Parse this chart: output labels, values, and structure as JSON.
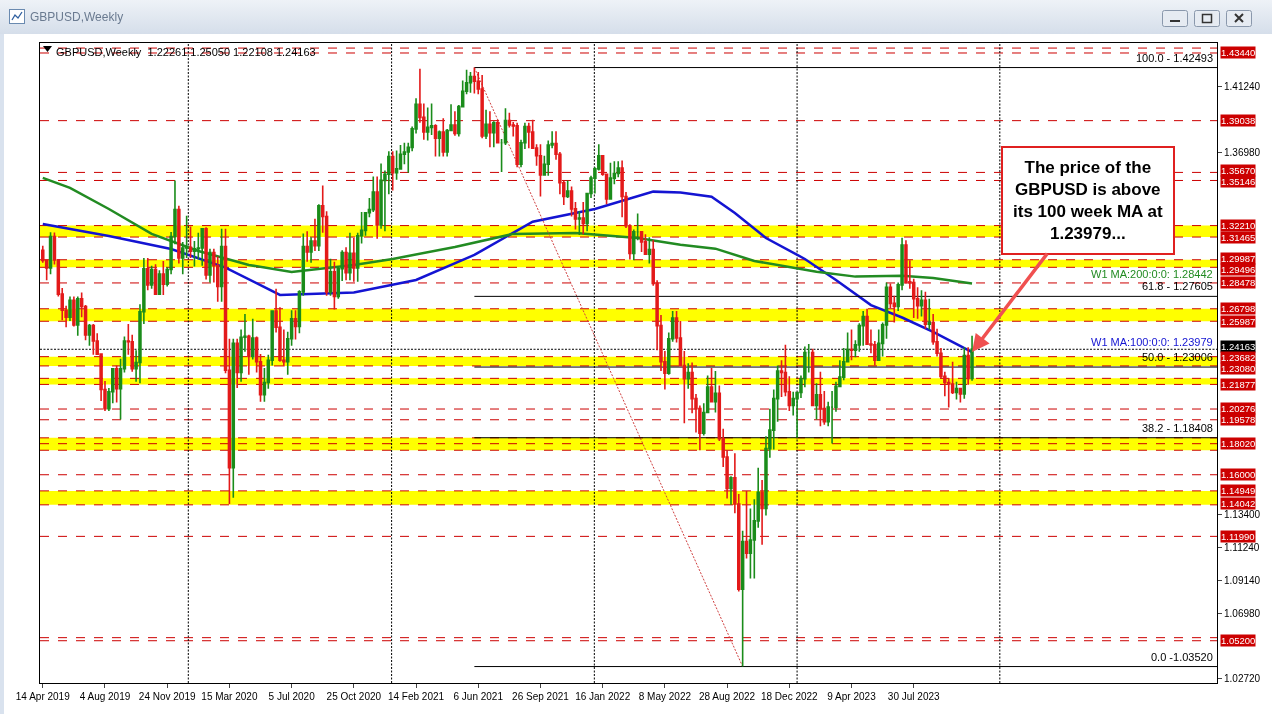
{
  "chart_data": {
    "type": "candlestick",
    "title": "GBPUSD,Weekly",
    "subtitle": "GBPUSD,Weekly  1.22261 1.25050 1.22108 1.24163",
    "colors": [
      "#e31a1a",
      "#e31a1a",
      "#1a8c1a",
      "#e31a1a",
      "#e31a1a",
      "#e31a1a",
      "#e31a1a",
      "#1a8c1a",
      "#e31a1a",
      "#1a8c1a",
      "#e31a1a",
      "#e31a1a",
      "#1a8c1a",
      "#e31a1a",
      "#e31a1a",
      "#e31a1a",
      "#e31a1a",
      "#1a8c1a",
      "#1a8c1a",
      "#e31a1a",
      "#1a8c1a",
      "#1a8c1a",
      "#e31a1a",
      "#e31a1a",
      "#1a8c1a",
      "#1a8c1a",
      "#1a8c1a",
      "#e31a1a",
      "#1a8c1a",
      "#e31a1a",
      "#1a8c1a",
      "#e31a1a",
      "#1a8c1a",
      "#1a8c1a",
      "#1a8c1a",
      "#e31a1a",
      "#1a8c1a",
      "#1a8c1a",
      "#e31a1a",
      "#1a8c1a",
      "#1a8c1a",
      "#1a8c1a",
      "#e31a1a",
      "#1a8c1a",
      "#e31a1a",
      "#e31a1a",
      "#1a8c1a",
      "#e31a1a",
      "#e31a1a",
      "#1a8c1a",
      "#e31a1a",
      "#1a8c1a",
      "#1a8c1a",
      "#e31a1a",
      "#1a8c1a",
      "#e31a1a",
      "#e31a1a",
      "#1a8c1a",
      "#1a8c1a",
      "#1a8c1a",
      "#e31a1a",
      "#e31a1a",
      "#e31a1a",
      "#1a8c1a",
      "#1a8c1a",
      "#e31a1a",
      "#1a8c1a",
      "#1a8c1a",
      "#e31a1a",
      "#1a8c1a",
      "#e31a1a",
      "#1a8c1a",
      "#e31a1a",
      "#e31a1a",
      "#1a8c1a",
      "#e31a1a",
      "#1a8c1a",
      "#1a8c1a",
      "#e31a1a",
      "#1a8c1a",
      "#e31a1a",
      "#1a8c1a",
      "#1a8c1a",
      "#1a8c1a",
      "#1a8c1a",
      "#1a8c1a",
      "#e31a1a",
      "#1a8c1a",
      "#1a8c1a",
      "#1a8c1a",
      "#e31a1a",
      "#1a8c1a",
      "#1a8c1a",
      "#1a8c1a",
      "#1a8c1a",
      "#1a8c1a",
      "#1a8c1a",
      "#e31a1a",
      "#e31a1a",
      "#1a8c1a",
      "#1a8c1a",
      "#e31a1a",
      "#1a8c1a",
      "#e31a1a",
      "#1a8c1a",
      "#1a8c1a",
      "#e31a1a",
      "#1a8c1a",
      "#1a8c1a",
      "#1a8c1a",
      "#1a8c1a",
      "#e31a1a",
      "#e31a1a",
      "#e31a1a",
      "#1a8c1a",
      "#e31a1a",
      "#1a8c1a",
      "#e31a1a",
      "#1a8c1a",
      "#1a8c1a",
      "#e31a1a",
      "#e31a1a",
      "#e31a1a",
      "#1a8c1a",
      "#1a8c1a",
      "#e31a1a",
      "#e31a1a",
      "#e31a1a",
      "#e31a1a",
      "#1a8c1a",
      "#1a8c1a",
      "#1a8c1a",
      "#e31a1a",
      "#e31a1a",
      "#e31a1a",
      "#1a8c1a",
      "#e31a1a",
      "#e31a1a",
      "#1a8c1a",
      "#e31a1a",
      "#1a8c1a",
      "#1a8c1a",
      "#1a8c1a",
      "#1a8c1a",
      "#e31a1a",
      "#e31a1a",
      "#1a8c1a",
      "#1a8c1a",
      "#1a8c1a",
      "#e31a1a",
      "#e31a1a",
      "#e31a1a",
      "#1a8c1a",
      "#1a8c1a",
      "#e31a1a",
      "#e31a1a",
      "#1a8c1a",
      "#e31a1a",
      "#e31a1a",
      "#e31a1a",
      "#e31a1a",
      "#1a8c1a",
      "#1a8c1a",
      "#e31a1a",
      "#e31a1a",
      "#e31a1a",
      "#1a8c1a",
      "#e31a1a",
      "#e31a1a",
      "#e31a1a",
      "#1a8c1a",
      "#1a8c1a",
      "#e31a1a",
      "#1a8c1a",
      "#e31a1a",
      "#e31a1a",
      "#e31a1a",
      "#1a8c1a",
      "#e31a1a",
      "#e31a1a",
      "#1a8c1a",
      "#e31a1a",
      "#1a8c1a",
      "#1a8c1a",
      "#1a8c1a",
      "#e31a1a",
      "#1a8c1a",
      "#1a8c1a",
      "#1a8c1a",
      "#1a8c1a",
      "#e31a1a",
      "#e31a1a",
      "#e31a1a",
      "#1a8c1a",
      "#1a8c1a",
      "#1a8c1a",
      "#1a8c1a",
      "#1a8c1a",
      "#e31a1a",
      "#1a8c1a",
      "#e31a1a",
      "#e31a1a",
      "#1a8c1a",
      "#1a8c1a",
      "#1a8c1a",
      "#1a8c1a",
      "#1a8c1a",
      "#1a8c1a",
      "#e31a1a",
      "#1a8c1a",
      "#1a8c1a",
      "#1a8c1a",
      "#e31a1a",
      "#e31a1a",
      "#e31a1a",
      "#1a8c1a",
      "#1a8c1a",
      "#1a8c1a",
      "#e31a1a",
      "#e31a1a",
      "#1a8c1a",
      "#1a8c1a",
      "#e31a1a",
      "#e31a1a",
      "#e31a1a",
      "#e31a1a",
      "#1a8c1a",
      "#e31a1a",
      "#1a8c1a",
      "#e31a1a",
      "#e31a1a",
      "#e31a1a",
      "#e31a1a",
      "#e31a1a",
      "#e31a1a",
      "#1a8c1a",
      "#e31a1a",
      "#1a8c1a",
      "#e31a1a",
      "#1a8c1a"
    ],
    "x": [
      "2019-04-14",
      "2019-04-21",
      "2019-04-28",
      "2019-05-05",
      "2019-05-12",
      "2019-05-19",
      "2019-05-26",
      "2019-06-02",
      "2019-06-09",
      "2019-06-16",
      "2019-06-23",
      "2019-06-30",
      "2019-07-07",
      "2019-07-14",
      "2019-07-21",
      "2019-07-28",
      "2019-08-04",
      "2019-08-11",
      "2019-08-18",
      "2019-08-25",
      "2019-09-01",
      "2019-09-08",
      "2019-09-15",
      "2019-09-22",
      "2019-09-29",
      "2019-10-06",
      "2019-10-13",
      "2019-10-20",
      "2019-10-27",
      "2019-11-03",
      "2019-11-10",
      "2019-11-17",
      "2019-11-24",
      "2019-12-01",
      "2019-12-08",
      "2019-12-15",
      "2019-12-22",
      "2019-12-29",
      "2020-01-05",
      "2020-01-12",
      "2020-01-19",
      "2020-01-26",
      "2020-02-02",
      "2020-02-09",
      "2020-02-16",
      "2020-02-23",
      "2020-03-01",
      "2020-03-08",
      "2020-03-15",
      "2020-03-22",
      "2020-03-29",
      "2020-04-05",
      "2020-04-12",
      "2020-04-19",
      "2020-04-26",
      "2020-05-03",
      "2020-05-10",
      "2020-05-17",
      "2020-05-24",
      "2020-05-31",
      "2020-06-07",
      "2020-06-14",
      "2020-06-21",
      "2020-06-28",
      "2020-07-05",
      "2020-07-12",
      "2020-07-19",
      "2020-07-26",
      "2020-08-02",
      "2020-08-09",
      "2020-08-16",
      "2020-08-23",
      "2020-08-30",
      "2020-09-06",
      "2020-09-13",
      "2020-09-20",
      "2020-09-27",
      "2020-10-04",
      "2020-10-11",
      "2020-10-18",
      "2020-10-25",
      "2020-11-01",
      "2020-11-08",
      "2020-11-15",
      "2020-11-22",
      "2020-11-29",
      "2020-12-06",
      "2020-12-13",
      "2020-12-20",
      "2020-12-27",
      "2021-01-03",
      "2021-01-10",
      "2021-01-17",
      "2021-01-24",
      "2021-01-31",
      "2021-02-07",
      "2021-02-14",
      "2021-02-21",
      "2021-02-28",
      "2021-03-07",
      "2021-03-14",
      "2021-03-21",
      "2021-03-28",
      "2021-04-04",
      "2021-04-11",
      "2021-04-18",
      "2021-04-25",
      "2021-05-02",
      "2021-05-09",
      "2021-05-16",
      "2021-05-23",
      "2021-05-30",
      "2021-06-06",
      "2021-06-13",
      "2021-06-20",
      "2021-06-27",
      "2021-07-04",
      "2021-07-11",
      "2021-07-18",
      "2021-07-25",
      "2021-08-01",
      "2021-08-08",
      "2021-08-15",
      "2021-08-22",
      "2021-08-29",
      "2021-09-05",
      "2021-09-12",
      "2021-09-19",
      "2021-09-26",
      "2021-10-03",
      "2021-10-10",
      "2021-10-17",
      "2021-10-24",
      "2021-10-31",
      "2021-11-07",
      "2021-11-14",
      "2021-11-21",
      "2021-11-28",
      "2021-12-05",
      "2021-12-12",
      "2021-12-19",
      "2021-12-26",
      "2022-01-02",
      "2022-01-09",
      "2022-01-16",
      "2022-01-23",
      "2022-01-30",
      "2022-02-06",
      "2022-02-13",
      "2022-02-20",
      "2022-02-27",
      "2022-03-06",
      "2022-03-13",
      "2022-03-20",
      "2022-03-27",
      "2022-04-03",
      "2022-04-10",
      "2022-04-17",
      "2022-04-24",
      "2022-05-01",
      "2022-05-08",
      "2022-05-15",
      "2022-05-22",
      "2022-05-29",
      "2022-06-05",
      "2022-06-12",
      "2022-06-19",
      "2022-06-26",
      "2022-07-03",
      "2022-07-10",
      "2022-07-17",
      "2022-07-24",
      "2022-07-31",
      "2022-08-07",
      "2022-08-14",
      "2022-08-21",
      "2022-08-28",
      "2022-09-04",
      "2022-09-11",
      "2022-09-18",
      "2022-09-25",
      "2022-10-02",
      "2022-10-09",
      "2022-10-16",
      "2022-10-23",
      "2022-10-30",
      "2022-11-06",
      "2022-11-13",
      "2022-11-20",
      "2022-11-27",
      "2022-12-04",
      "2022-12-11",
      "2022-12-18",
      "2022-12-25",
      "2023-01-01",
      "2023-01-08",
      "2023-01-15",
      "2023-01-22",
      "2023-01-29",
      "2023-02-05",
      "2023-02-12",
      "2023-02-19",
      "2023-02-26",
      "2023-03-05",
      "2023-03-12",
      "2023-03-19",
      "2023-03-26",
      "2023-04-02",
      "2023-04-09",
      "2023-04-16",
      "2023-04-23",
      "2023-04-30",
      "2023-05-07",
      "2023-05-14",
      "2023-05-21",
      "2023-05-28",
      "2023-06-04",
      "2023-06-11",
      "2023-06-18",
      "2023-06-25",
      "2023-07-02",
      "2023-07-09",
      "2023-07-16",
      "2023-07-23",
      "2023-07-30",
      "2023-08-06",
      "2023-08-13",
      "2023-08-20",
      "2023-08-27",
      "2023-09-03",
      "2023-09-10",
      "2023-09-17",
      "2023-09-24",
      "2023-10-01",
      "2023-10-08",
      "2023-10-15",
      "2023-10-22",
      "2023-10-29",
      "2023-11-05",
      "2023-11-12"
    ],
    "ohlc": [
      [
        1.306,
        1.309,
        1.298,
        1.2995
      ],
      [
        1.2995,
        1.3,
        1.2866,
        1.2945
      ],
      [
        1.2945,
        1.3177,
        1.2905,
        1.315
      ],
      [
        1.315,
        1.3176,
        1.2968,
        1.2998
      ],
      [
        1.2998,
        1.3,
        1.276,
        1.2775
      ],
      [
        1.2775,
        1.2815,
        1.2605,
        1.267
      ],
      [
        1.267,
        1.27,
        1.256,
        1.2625
      ],
      [
        1.2625,
        1.276,
        1.26,
        1.2735
      ],
      [
        1.2735,
        1.276,
        1.2565,
        1.2575
      ],
      [
        1.2575,
        1.276,
        1.2505,
        1.2745
      ],
      [
        1.2745,
        1.2785,
        1.2625,
        1.2695
      ],
      [
        1.2695,
        1.2705,
        1.2475,
        1.251
      ],
      [
        1.251,
        1.258,
        1.244,
        1.257
      ],
      [
        1.257,
        1.258,
        1.238,
        1.247
      ],
      [
        1.247,
        1.252,
        1.238,
        1.2385
      ],
      [
        1.2385,
        1.239,
        1.208,
        1.2155
      ],
      [
        1.2155,
        1.221,
        1.2015,
        1.203
      ],
      [
        1.203,
        1.2165,
        1.2015,
        1.214
      ],
      [
        1.214,
        1.229,
        1.2065,
        1.229
      ],
      [
        1.229,
        1.231,
        1.207,
        1.216
      ],
      [
        1.216,
        1.2355,
        1.1959,
        1.229
      ],
      [
        1.229,
        1.25,
        1.2265,
        1.247
      ],
      [
        1.247,
        1.258,
        1.238,
        1.2465
      ],
      [
        1.2465,
        1.251,
        1.227,
        1.229
      ],
      [
        1.229,
        1.241,
        1.2205,
        1.233
      ],
      [
        1.233,
        1.271,
        1.2195,
        1.266
      ],
      [
        1.266,
        1.301,
        1.258,
        1.294
      ],
      [
        1.294,
        1.301,
        1.28,
        1.2835
      ],
      [
        1.2835,
        1.296,
        1.281,
        1.2935
      ],
      [
        1.2935,
        1.297,
        1.277,
        1.2775
      ],
      [
        1.2775,
        1.293,
        1.277,
        1.2905
      ],
      [
        1.2905,
        1.299,
        1.277,
        1.284
      ],
      [
        1.284,
        1.295,
        1.2825,
        1.2935
      ],
      [
        1.2935,
        1.318,
        1.2905,
        1.315
      ],
      [
        1.315,
        1.3514,
        1.31,
        1.3325
      ],
      [
        1.3325,
        1.335,
        1.2975,
        1.301
      ],
      [
        1.301,
        1.3115,
        1.2905,
        1.3075
      ],
      [
        1.3075,
        1.3285,
        1.301,
        1.308
      ],
      [
        1.308,
        1.3215,
        1.301,
        1.3055
      ],
      [
        1.3055,
        1.312,
        1.2955,
        1.307
      ],
      [
        1.307,
        1.3175,
        1.3,
        1.3075
      ],
      [
        1.3075,
        1.3205,
        1.296,
        1.32
      ],
      [
        1.32,
        1.321,
        1.287,
        1.29
      ],
      [
        1.29,
        1.307,
        1.285,
        1.3045
      ],
      [
        1.3045,
        1.307,
        1.285,
        1.296
      ],
      [
        1.296,
        1.302,
        1.2725,
        1.2825
      ],
      [
        1.2825,
        1.32,
        1.2725,
        1.3085
      ],
      [
        1.3085,
        1.32,
        1.226,
        1.228
      ],
      [
        1.228,
        1.2485,
        1.1409,
        1.1645
      ],
      [
        1.1645,
        1.2485,
        1.145,
        1.2455
      ],
      [
        1.2455,
        1.2485,
        1.2165,
        1.2265
      ],
      [
        1.2265,
        1.2545,
        1.2205,
        1.2495
      ],
      [
        1.2495,
        1.2645,
        1.24,
        1.25
      ],
      [
        1.25,
        1.251,
        1.225,
        1.237
      ],
      [
        1.237,
        1.2615,
        1.235,
        1.249
      ],
      [
        1.249,
        1.25,
        1.2265,
        1.2335
      ],
      [
        1.2335,
        1.2385,
        1.2075,
        1.212
      ],
      [
        1.212,
        1.2295,
        1.2075,
        1.22
      ],
      [
        1.22,
        1.238,
        1.216,
        1.2345
      ],
      [
        1.2345,
        1.267,
        1.231,
        1.2665
      ],
      [
        1.2665,
        1.281,
        1.2525,
        1.256
      ],
      [
        1.256,
        1.269,
        1.2335,
        1.2345
      ],
      [
        1.2345,
        1.2545,
        1.2305,
        1.2335
      ],
      [
        1.2335,
        1.253,
        1.225,
        1.2485
      ],
      [
        1.2485,
        1.267,
        1.244,
        1.2615
      ],
      [
        1.2615,
        1.267,
        1.248,
        1.2565
      ],
      [
        1.2565,
        1.28,
        1.252,
        1.279
      ],
      [
        1.279,
        1.317,
        1.2765,
        1.3085
      ],
      [
        1.3085,
        1.3185,
        1.2985,
        1.305
      ],
      [
        1.305,
        1.3145,
        1.298,
        1.312
      ],
      [
        1.312,
        1.3265,
        1.3055,
        1.309
      ],
      [
        1.309,
        1.336,
        1.3055,
        1.335
      ],
      [
        1.335,
        1.3482,
        1.3175,
        1.328
      ],
      [
        1.328,
        1.3315,
        1.2765,
        1.279
      ],
      [
        1.279,
        1.3005,
        1.2765,
        1.292
      ],
      [
        1.292,
        1.2985,
        1.2675,
        1.276
      ],
      [
        1.276,
        1.2955,
        1.2745,
        1.294
      ],
      [
        1.294,
        1.306,
        1.286,
        1.3045
      ],
      [
        1.3045,
        1.308,
        1.2865,
        1.2915
      ],
      [
        1.2915,
        1.3175,
        1.2865,
        1.304
      ],
      [
        1.304,
        1.314,
        1.2855,
        1.2945
      ],
      [
        1.2945,
        1.3175,
        1.2855,
        1.3155
      ],
      [
        1.3155,
        1.331,
        1.3105,
        1.319
      ],
      [
        1.319,
        1.331,
        1.3155,
        1.3305
      ],
      [
        1.3305,
        1.34,
        1.3275,
        1.3325
      ],
      [
        1.3325,
        1.354,
        1.331,
        1.344
      ],
      [
        1.344,
        1.354,
        1.3135,
        1.3225
      ],
      [
        1.3225,
        1.3625,
        1.32,
        1.3515
      ],
      [
        1.3515,
        1.358,
        1.3185,
        1.3555
      ],
      [
        1.3555,
        1.3705,
        1.3425,
        1.367
      ],
      [
        1.367,
        1.3705,
        1.345,
        1.3565
      ],
      [
        1.3565,
        1.371,
        1.352,
        1.359
      ],
      [
        1.359,
        1.3745,
        1.359,
        1.3685
      ],
      [
        1.3685,
        1.376,
        1.362,
        1.37
      ],
      [
        1.37,
        1.376,
        1.3565,
        1.373
      ],
      [
        1.373,
        1.3865,
        1.3705,
        1.385
      ],
      [
        1.385,
        1.405,
        1.382,
        1.401
      ],
      [
        1.401,
        1.4241,
        1.389,
        1.3925
      ],
      [
        1.3925,
        1.4015,
        1.378,
        1.383
      ],
      [
        1.383,
        1.399,
        1.3775,
        1.386
      ],
      [
        1.386,
        1.4015,
        1.381,
        1.387
      ],
      [
        1.387,
        1.388,
        1.367,
        1.379
      ],
      [
        1.379,
        1.384,
        1.367,
        1.383
      ],
      [
        1.383,
        1.392,
        1.367,
        1.37
      ],
      [
        1.37,
        1.385,
        1.367,
        1.384
      ],
      [
        1.384,
        1.401,
        1.3835,
        1.3875
      ],
      [
        1.3875,
        1.3965,
        1.3805,
        1.382
      ],
      [
        1.382,
        1.4005,
        1.38,
        1.3995
      ],
      [
        1.3995,
        1.4165,
        1.399,
        1.4095
      ],
      [
        1.4095,
        1.4235,
        1.4075,
        1.415
      ],
      [
        1.415,
        1.422,
        1.4085,
        1.419
      ],
      [
        1.419,
        1.4249,
        1.408,
        1.416
      ],
      [
        1.416,
        1.422,
        1.4075,
        1.411
      ],
      [
        1.411,
        1.42,
        1.379,
        1.3805
      ],
      [
        1.3805,
        1.3975,
        1.3785,
        1.388
      ],
      [
        1.388,
        1.3965,
        1.373,
        1.3825
      ],
      [
        1.3825,
        1.39,
        1.373,
        1.389
      ],
      [
        1.389,
        1.391,
        1.376,
        1.376
      ],
      [
        1.376,
        1.3785,
        1.357,
        1.376
      ],
      [
        1.376,
        1.3985,
        1.3745,
        1.3905
      ],
      [
        1.3905,
        1.3955,
        1.386,
        1.3875
      ],
      [
        1.3875,
        1.3895,
        1.38,
        1.387
      ],
      [
        1.387,
        1.389,
        1.36,
        1.362
      ],
      [
        1.362,
        1.378,
        1.36,
        1.376
      ],
      [
        1.376,
        1.389,
        1.372,
        1.3865
      ],
      [
        1.3865,
        1.389,
        1.3725,
        1.383
      ],
      [
        1.383,
        1.391,
        1.3725,
        1.3725
      ],
      [
        1.3725,
        1.375,
        1.361,
        1.3675
      ],
      [
        1.3675,
        1.375,
        1.341,
        1.355
      ],
      [
        1.355,
        1.3675,
        1.3545,
        1.362
      ],
      [
        1.362,
        1.3775,
        1.3545,
        1.3745
      ],
      [
        1.3745,
        1.3835,
        1.3725,
        1.3755
      ],
      [
        1.3755,
        1.3835,
        1.365,
        1.3685
      ],
      [
        1.3685,
        1.37,
        1.3425,
        1.35
      ],
      [
        1.35,
        1.3515,
        1.3355,
        1.341
      ],
      [
        1.341,
        1.3515,
        1.34,
        1.3445
      ],
      [
        1.3445,
        1.3475,
        1.328,
        1.333
      ],
      [
        1.333,
        1.3375,
        1.3195,
        1.3265
      ],
      [
        1.3265,
        1.3315,
        1.316,
        1.327
      ],
      [
        1.327,
        1.3375,
        1.3165,
        1.3235
      ],
      [
        1.3235,
        1.3435,
        1.3185,
        1.343
      ],
      [
        1.343,
        1.3545,
        1.34,
        1.353
      ],
      [
        1.353,
        1.36,
        1.343,
        1.359
      ],
      [
        1.359,
        1.375,
        1.358,
        1.3675
      ],
      [
        1.3675,
        1.368,
        1.3545,
        1.3555
      ],
      [
        1.3555,
        1.356,
        1.336,
        1.3395
      ],
      [
        1.3395,
        1.363,
        1.339,
        1.353
      ],
      [
        1.353,
        1.364,
        1.349,
        1.356
      ],
      [
        1.356,
        1.364,
        1.3535,
        1.3595
      ],
      [
        1.3595,
        1.3645,
        1.3275,
        1.341
      ],
      [
        1.341,
        1.344,
        1.3205,
        1.322
      ],
      [
        1.322,
        1.323,
        1.3,
        1.304
      ],
      [
        1.304,
        1.3195,
        1.2995,
        1.318
      ],
      [
        1.318,
        1.33,
        1.3125,
        1.318
      ],
      [
        1.318,
        1.318,
        1.305,
        1.3115
      ],
      [
        1.3115,
        1.3165,
        1.303,
        1.3035
      ],
      [
        1.3035,
        1.3145,
        1.2975,
        1.3065
      ],
      [
        1.3065,
        1.3125,
        1.283,
        1.2845
      ],
      [
        1.2845,
        1.2865,
        1.241,
        1.257
      ],
      [
        1.257,
        1.264,
        1.2275,
        1.2335
      ],
      [
        1.2335,
        1.2405,
        1.2155,
        1.226
      ],
      [
        1.226,
        1.2525,
        1.225,
        1.2485
      ],
      [
        1.2485,
        1.2665,
        1.2465,
        1.262
      ],
      [
        1.262,
        1.2665,
        1.246,
        1.249
      ],
      [
        1.249,
        1.26,
        1.2305,
        1.231
      ],
      [
        1.231,
        1.2405,
        1.1935,
        1.2225
      ],
      [
        1.2225,
        1.2325,
        1.216,
        1.2265
      ],
      [
        1.2265,
        1.233,
        1.2,
        1.2095
      ],
      [
        1.2095,
        1.2125,
        1.1875,
        1.203
      ],
      [
        1.203,
        1.205,
        1.176,
        1.187
      ],
      [
        1.187,
        1.2065,
        1.1855,
        1.2005
      ],
      [
        1.2005,
        1.2245,
        1.2,
        1.217
      ],
      [
        1.217,
        1.2295,
        1.207,
        1.2075
      ],
      [
        1.2075,
        1.2275,
        1.2005,
        1.213
      ],
      [
        1.213,
        1.218,
        1.182,
        1.1835
      ],
      [
        1.1835,
        1.19,
        1.165,
        1.1715
      ],
      [
        1.1715,
        1.176,
        1.1445,
        1.151
      ],
      [
        1.151,
        1.159,
        1.1405,
        1.158
      ],
      [
        1.158,
        1.174,
        1.135,
        1.141
      ],
      [
        1.141,
        1.1475,
        1.084,
        1.0855
      ],
      [
        1.0855,
        1.1235,
        1.0352,
        1.1165
      ],
      [
        1.1165,
        1.1495,
        1.1055,
        1.109
      ],
      [
        1.109,
        1.138,
        1.0925,
        1.1175
      ],
      [
        1.1175,
        1.144,
        1.0925,
        1.13
      ],
      [
        1.13,
        1.1645,
        1.1255,
        1.1485
      ],
      [
        1.1485,
        1.1565,
        1.1145,
        1.138
      ],
      [
        1.138,
        1.185,
        1.1335,
        1.177
      ],
      [
        1.177,
        1.203,
        1.171,
        1.189
      ],
      [
        1.189,
        1.2155,
        1.1765,
        1.2095
      ],
      [
        1.2095,
        1.231,
        1.1945,
        1.2275
      ],
      [
        1.2275,
        1.2345,
        1.2105,
        1.2265
      ],
      [
        1.2265,
        1.2446,
        1.211,
        1.214
      ],
      [
        1.214,
        1.224,
        1.2015,
        1.205
      ],
      [
        1.205,
        1.214,
        1.1985,
        1.2095
      ],
      [
        1.2095,
        1.214,
        1.184,
        1.2135
      ],
      [
        1.2135,
        1.2245,
        1.21,
        1.2225
      ],
      [
        1.2225,
        1.2435,
        1.217,
        1.2395
      ],
      [
        1.2395,
        1.245,
        1.2265,
        1.2395
      ],
      [
        1.2395,
        1.242,
        1.2045,
        1.205
      ],
      [
        1.205,
        1.2195,
        1.196,
        1.212
      ],
      [
        1.212,
        1.227,
        1.1915,
        1.203
      ],
      [
        1.203,
        1.2145,
        1.1925,
        1.1945
      ],
      [
        1.1945,
        1.2075,
        1.1915,
        1.204
      ],
      [
        1.204,
        1.2145,
        1.1803,
        1.204
      ],
      [
        1.204,
        1.2205,
        1.201,
        1.2175
      ],
      [
        1.2175,
        1.2345,
        1.217,
        1.2235
      ],
      [
        1.2235,
        1.2425,
        1.2215,
        1.2335
      ],
      [
        1.2335,
        1.2525,
        1.2335,
        1.2415
      ],
      [
        1.2415,
        1.2545,
        1.2345,
        1.241
      ],
      [
        1.241,
        1.2475,
        1.2365,
        1.2445
      ],
      [
        1.2445,
        1.2585,
        1.24,
        1.257
      ],
      [
        1.257,
        1.2665,
        1.244,
        1.263
      ],
      [
        1.263,
        1.268,
        1.2445,
        1.245
      ],
      [
        1.245,
        1.2545,
        1.239,
        1.2445
      ],
      [
        1.2445,
        1.247,
        1.231,
        1.2345
      ],
      [
        1.2345,
        1.2545,
        1.2345,
        1.2455
      ],
      [
        1.2455,
        1.259,
        1.237,
        1.2575
      ],
      [
        1.2575,
        1.285,
        1.2485,
        1.282
      ],
      [
        1.282,
        1.2845,
        1.2685,
        1.2715
      ],
      [
        1.2715,
        1.2765,
        1.259,
        1.2695
      ],
      [
        1.2695,
        1.285,
        1.2665,
        1.2835
      ],
      [
        1.2835,
        1.3142,
        1.28,
        1.3095
      ],
      [
        1.3095,
        1.3125,
        1.2845,
        1.2855
      ],
      [
        1.2855,
        1.2995,
        1.281,
        1.285
      ],
      [
        1.285,
        1.2875,
        1.262,
        1.2745
      ],
      [
        1.2745,
        1.282,
        1.2615,
        1.27
      ],
      [
        1.27,
        1.28,
        1.263,
        1.2735
      ],
      [
        1.2735,
        1.279,
        1.255,
        1.258
      ],
      [
        1.258,
        1.2745,
        1.2545,
        1.259
      ],
      [
        1.259,
        1.2645,
        1.2445,
        1.2465
      ],
      [
        1.2465,
        1.255,
        1.237,
        1.239
      ],
      [
        1.239,
        1.2425,
        1.223,
        1.224
      ],
      [
        1.224,
        1.227,
        1.211,
        1.22
      ],
      [
        1.22,
        1.223,
        1.2037,
        1.219
      ],
      [
        1.219,
        1.2335,
        1.2125,
        1.2135
      ],
      [
        1.2135,
        1.2205,
        1.209,
        1.216
      ],
      [
        1.216,
        1.2165,
        1.207,
        1.2125
      ],
      [
        1.2125,
        1.243,
        1.2095,
        1.2375
      ],
      [
        1.2375,
        1.243,
        1.2185,
        1.2226
      ],
      [
        1.22261,
        1.2505,
        1.22108,
        1.24163
      ]
    ],
    "series": [
      {
        "type": "line",
        "name": "W1 MA:100:0:0: 1.23979",
        "color": "#1414d2",
        "x": [
          "2019-04-14",
          "2019-08-11",
          "2019-12-01",
          "2020-03-08",
          "2020-06-14",
          "2020-10-25",
          "2021-02-14",
          "2021-05-30",
          "2021-09-12",
          "2022-01-02",
          "2022-04-17",
          "2022-06-05",
          "2022-07-31",
          "2022-09-11",
          "2022-11-06",
          "2023-01-15",
          "2023-03-12",
          "2023-05-14",
          "2023-07-09",
          "2023-09-03",
          "2023-11-12"
        ],
        "values": [
          1.3231,
          1.3153,
          1.3069,
          1.2948,
          1.277,
          1.2786,
          1.2867,
          1.303,
          1.3246,
          1.3329,
          1.3442,
          1.3437,
          1.3409,
          1.3303,
          1.314,
          1.3004,
          1.2867,
          1.2704,
          1.2623,
          1.2529,
          1.2398
        ]
      },
      {
        "type": "line",
        "name": "W1 MA:200:0:0: 1.28442",
        "color": "#228b22",
        "x": [
          "2019-04-14",
          "2019-06-02",
          "2019-08-11",
          "2019-10-27",
          "2020-01-19",
          "2020-04-19",
          "2020-07-05",
          "2020-10-25",
          "2021-01-03",
          "2021-04-25",
          "2021-08-08",
          "2021-11-28",
          "2022-03-20",
          "2022-06-05",
          "2022-08-07",
          "2022-10-16",
          "2023-02-05",
          "2023-04-16",
          "2023-07-09",
          "2023-09-03",
          "2023-11-12"
        ],
        "values": [
          1.3531,
          1.3466,
          1.3329,
          1.3167,
          1.3056,
          1.2965,
          1.2919,
          1.2965,
          1.3004,
          1.3082,
          1.3167,
          1.3173,
          1.314,
          1.3097,
          1.3071,
          1.2991,
          1.2921,
          1.2889,
          1.2894,
          1.288,
          1.2844
        ]
      },
      {
        "type": "line",
        "color": "#d04040",
        "line_style": "dotted",
        "x": [
          "2021-05-30",
          "2022-09-25"
        ],
        "values": [
          1.4249,
          1.0352
        ]
      },
      {
        "type": "line",
        "name": "100.0 - 1.42493",
        "color": "#000000",
        "x": [
          "2021-05-30",
          "2025-01-26"
        ],
        "values": [
          1.42493,
          1.42493
        ]
      },
      {
        "type": "line",
        "name": "61.8 - 1.27605",
        "color": "#000000",
        "x": [
          "2021-05-30",
          "2025-01-26"
        ],
        "values": [
          1.27605,
          1.27605
        ]
      },
      {
        "type": "line",
        "name": "50.0 - 1.23006",
        "color": "#000000",
        "x": [
          "2021-05-30",
          "2025-01-26"
        ],
        "values": [
          1.23006,
          1.23006
        ]
      },
      {
        "type": "line",
        "name": "38.2 - 1.18408",
        "color": "#000000",
        "x": [
          "2021-05-30",
          "2025-01-26"
        ],
        "values": [
          1.18408,
          1.18408
        ]
      },
      {
        "type": "line",
        "name": "0.0 -1.03520",
        "color": "#000000",
        "x": [
          "2021-05-30",
          "2025-01-26"
        ],
        "values": [
          1.0352,
          1.0352
        ]
      }
    ],
    "xlim": [
      "2019-04-09",
      "2025-01-26"
    ],
    "xticks": [
      {
        "value": "2019-04-14",
        "label": "14 Apr 2019"
      },
      {
        "value": "2019-08-04",
        "label": "4 Aug 2019"
      },
      {
        "value": "2019-11-24",
        "label": "24 Nov 2019"
      },
      {
        "value": "2020-03-15",
        "label": "15 Mar 2020"
      },
      {
        "value": "2020-07-05",
        "label": "5 Jul 2020"
      },
      {
        "value": "2020-10-25",
        "label": "25 Oct 2020"
      },
      {
        "value": "2021-02-14",
        "label": "14 Feb 2021"
      },
      {
        "value": "2021-06-06",
        "label": "6 Jun 2021"
      },
      {
        "value": "2021-09-26",
        "label": "26 Sep 2021"
      },
      {
        "value": "2022-01-16",
        "label": "16 Jan 2022"
      },
      {
        "value": "2022-05-08",
        "label": "8 May 2022"
      },
      {
        "value": "2022-08-28",
        "label": "28 Aug 2022"
      },
      {
        "value": "2022-12-18",
        "label": "18 Dec 2022"
      },
      {
        "value": "2023-04-09",
        "label": "9 Apr 2023"
      },
      {
        "value": "2023-07-30",
        "label": "30 Jul 2023"
      }
    ],
    "ylim": [
      1.0245,
      1.4409
    ],
    "yticks": [
      {
        "value": 1.4124,
        "label": "1.41240"
      },
      {
        "value": 1.3698,
        "label": "1.36980"
      },
      {
        "value": 1.134,
        "label": "1.13400"
      },
      {
        "value": 1.1124,
        "label": "1.11240"
      },
      {
        "value": 1.0914,
        "label": "1.09140"
      },
      {
        "value": 1.0698,
        "label": "1.06980"
      },
      {
        "value": 1.0272,
        "label": "1.02720"
      }
    ],
    "bands": [
      {
        "axis": "y",
        "from": 1.31465,
        "to": 1.3221,
        "color": "#ffff00"
      },
      {
        "axis": "y",
        "from": 1.29496,
        "to": 1.29987,
        "color": "#ffff00"
      },
      {
        "axis": "y",
        "from": 1.25987,
        "to": 1.26798,
        "color": "#ffff00"
      },
      {
        "axis": "y",
        "from": 1.2308,
        "to": 1.23682,
        "color": "#ffff00"
      },
      {
        "axis": "y",
        "from": 1.21877,
        "to": 1.22271,
        "color": "#ffff00"
      },
      {
        "axis": "y",
        "from": 1.17594,
        "to": 1.184,
        "color": "#ffff00"
      },
      {
        "axis": "y",
        "from": 1.14042,
        "to": 1.14949,
        "color": "#ffff00"
      }
    ],
    "ref_lines": [
      {
        "axis": "y",
        "value": 1.4376,
        "color": "#cc0000",
        "line_style": "dashed"
      },
      {
        "axis": "y",
        "value": 1.4344,
        "label": "1.43440",
        "color": "#cc0000",
        "line_style": "dashed"
      },
      {
        "axis": "y",
        "value": 1.39038,
        "label": "1.39038",
        "color": "#cc0000",
        "line_style": "dashed"
      },
      {
        "axis": "y",
        "value": 1.3567,
        "label": "1.35670",
        "color": "#cc0000",
        "line_style": "dashed"
      },
      {
        "axis": "y",
        "value": 1.35146,
        "label": "1.35146",
        "color": "#cc0000",
        "line_style": "dashed"
      },
      {
        "axis": "y",
        "value": 1.3221,
        "label": "1.32210",
        "color": "#cc0000",
        "line_style": "dashed"
      },
      {
        "axis": "y",
        "value": 1.31465,
        "label": "1.31465",
        "color": "#cc0000",
        "line_style": "dashed"
      },
      {
        "axis": "y",
        "value": 1.29987,
        "label": "1.29987",
        "color": "#cc0000",
        "line_style": "dashed"
      },
      {
        "axis": "y",
        "value": 1.29496,
        "label": "1.29496",
        "color": "#cc0000",
        "line_style": "dashed"
      },
      {
        "axis": "y",
        "value": 1.28478,
        "label": "1.28478",
        "color": "#cc0000",
        "line_style": "dashed"
      },
      {
        "axis": "y",
        "value": 1.26798,
        "label": "1.26798",
        "color": "#cc0000",
        "line_style": "dashed"
      },
      {
        "axis": "y",
        "value": 1.25987,
        "label": "1.25987",
        "color": "#cc0000",
        "line_style": "dashed"
      },
      {
        "axis": "y",
        "value": 1.24163,
        "label": "1.24163",
        "color": "#000000",
        "line_style": "dotted"
      },
      {
        "axis": "y",
        "value": 1.23682,
        "label": "1.23682",
        "color": "#cc0000",
        "line_style": "dashed"
      },
      {
        "axis": "y",
        "value": 1.2308,
        "label": "1.23080",
        "color": "#cc0000",
        "line_style": "dashed"
      },
      {
        "axis": "y",
        "value": 1.22271,
        "color": "#cc0000",
        "line_style": "dashed"
      },
      {
        "axis": "y",
        "value": 1.21877,
        "label": "1.21877",
        "color": "#cc0000",
        "line_style": "dashed"
      },
      {
        "axis": "y",
        "value": 1.20276,
        "label": "1.20276",
        "color": "#cc0000",
        "line_style": "dashed"
      },
      {
        "axis": "y",
        "value": 1.19578,
        "label": "1.19578",
        "color": "#cc0000",
        "line_style": "dashed"
      },
      {
        "axis": "y",
        "value": 1.184,
        "color": "#cc0000",
        "line_style": "dashed"
      },
      {
        "axis": "y",
        "value": 1.1802,
        "label": "1.18020",
        "color": "#cc0000",
        "line_style": "dashed"
      },
      {
        "axis": "y",
        "value": 1.17594,
        "color": "#cc0000",
        "line_style": "dashed"
      },
      {
        "axis": "y",
        "value": 1.16,
        "label": "1.16000",
        "color": "#cc0000",
        "line_style": "dashed"
      },
      {
        "axis": "y",
        "value": 1.14949,
        "label": "1.14949",
        "color": "#cc0000",
        "line_style": "dashed"
      },
      {
        "axis": "y",
        "value": 1.14042,
        "label": "1.14042",
        "color": "#cc0000",
        "line_style": "dashed"
      },
      {
        "axis": "y",
        "value": 1.1199,
        "label": "1.11990",
        "color": "#cc0000",
        "line_style": "dashed"
      },
      {
        "axis": "y",
        "value": 1.054,
        "color": "#cc0000",
        "line_style": "dashed"
      },
      {
        "axis": "y",
        "value": 1.052,
        "label": "1.05200",
        "color": "#cc0000",
        "line_style": "dashed"
      },
      {
        "axis": "x",
        "value": "2020-01-01",
        "color": "#000000",
        "line_style": "dotted"
      },
      {
        "axis": "x",
        "value": "2021-01-01",
        "color": "#000000",
        "line_style": "dotted"
      },
      {
        "axis": "x",
        "value": "2022-01-01",
        "color": "#000000",
        "line_style": "dotted"
      },
      {
        "axis": "x",
        "value": "2023-01-01",
        "color": "#000000",
        "line_style": "dotted"
      },
      {
        "axis": "x",
        "value": "2024-01-01",
        "color": "#000000",
        "line_style": "dotted"
      }
    ],
    "annotations": [
      {
        "text": "The price of the\nGBPUSD is above\nits 100 week MA at\n1.23979...",
        "x": "2023-11-12",
        "y": 1.23979
      }
    ],
    "legend": false,
    "grid": false
  }
}
